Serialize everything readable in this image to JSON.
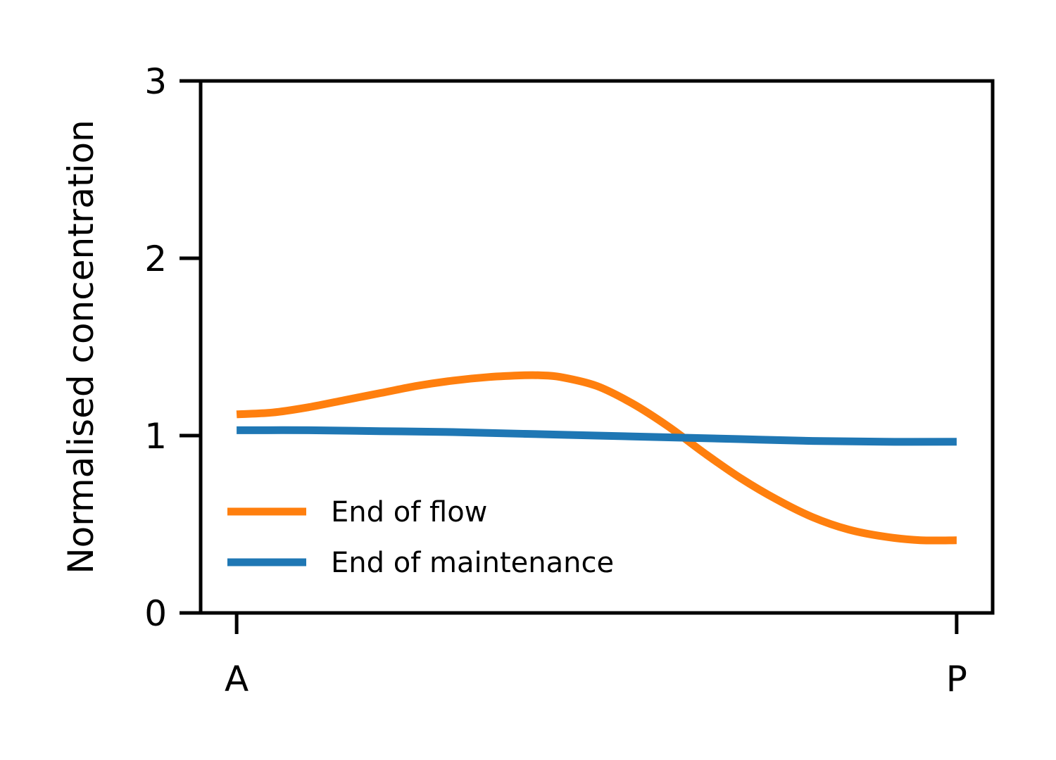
{
  "chart_data": {
    "type": "line",
    "title": "",
    "xlabel": "",
    "ylabel": "Normalised concentration",
    "xlim": [
      -0.05,
      1.05
    ],
    "ylim": [
      0,
      3
    ],
    "x_ticks": [
      {
        "value": 0,
        "label": "A"
      },
      {
        "value": 1,
        "label": "P"
      }
    ],
    "y_ticks": [
      {
        "value": 0,
        "label": "0"
      },
      {
        "value": 1,
        "label": "1"
      },
      {
        "value": 2,
        "label": "2"
      },
      {
        "value": 3,
        "label": "3"
      }
    ],
    "grid": false,
    "legend_position": "lower-left",
    "series": [
      {
        "name": "End of flow",
        "color": "#ff7f0e",
        "x": [
          0,
          0.05,
          0.1,
          0.15,
          0.2,
          0.25,
          0.3,
          0.35,
          0.4,
          0.42,
          0.45,
          0.5,
          0.55,
          0.6,
          0.65,
          0.7,
          0.75,
          0.8,
          0.85,
          0.9,
          0.95,
          1.0
        ],
        "y": [
          1.12,
          1.13,
          1.16,
          1.2,
          1.24,
          1.28,
          1.31,
          1.33,
          1.34,
          1.34,
          1.33,
          1.28,
          1.18,
          1.05,
          0.9,
          0.76,
          0.64,
          0.54,
          0.47,
          0.43,
          0.41,
          0.41
        ]
      },
      {
        "name": "End of maintenance",
        "color": "#1f77b4",
        "x": [
          0,
          0.1,
          0.2,
          0.3,
          0.4,
          0.5,
          0.6,
          0.7,
          0.8,
          0.9,
          1.0
        ],
        "y": [
          1.03,
          1.03,
          1.025,
          1.02,
          1.01,
          1.0,
          0.99,
          0.98,
          0.97,
          0.965,
          0.965
        ]
      }
    ]
  }
}
